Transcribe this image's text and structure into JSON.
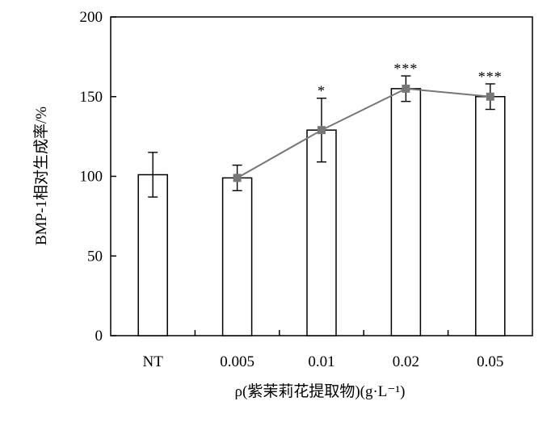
{
  "chart_data": {
    "type": "bar",
    "categories": [
      "NT",
      "0.005",
      "0.01",
      "0.02",
      "0.05"
    ],
    "series": [
      {
        "values": [
          101,
          99,
          129,
          155,
          150
        ],
        "errors": [
          14,
          8,
          20,
          8,
          8
        ],
        "significance": [
          "",
          "",
          "*",
          "***",
          "***"
        ]
      }
    ],
    "line_overlay": {
      "categories": [
        "0.005",
        "0.01",
        "0.02",
        "0.05"
      ],
      "values": [
        99,
        129,
        155,
        150
      ],
      "color": "#777777",
      "marker": "square"
    },
    "xlabel": "ρ(紫茉莉花提取物)(g·L⁻¹)",
    "ylabel": "BMP-1相对生成率/%",
    "ylim": [
      0,
      200
    ],
    "yticks": [
      "0",
      "50",
      "100",
      "150",
      "200"
    ],
    "bar_fill": "#ffffff",
    "bar_edge": "#000000",
    "grid": false,
    "legend": "none"
  }
}
